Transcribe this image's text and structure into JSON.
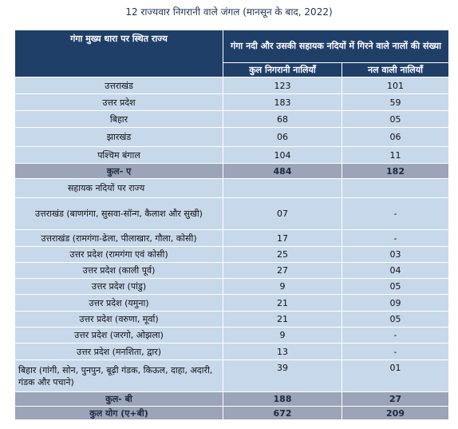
{
  "title": "12 राज्यवार निगरानी वाले जंगल (मानसून के बाद, 2022)",
  "table": {
    "header_state": "गंगा मुख्य धारा पर स्थित राज्य",
    "header_group": "गंगा नदी और उसकी सहायक नदियों में गिरने वाले नालों की संख्या",
    "header_col1": "कुल निगरानी नालियाँ",
    "header_col2": "नल वाली नालियाँ",
    "main_rows": [
      {
        "state": "उत्तराखंड",
        "total": "123",
        "tapped": "101"
      },
      {
        "state": "उत्तर प्रदेश",
        "total": "183",
        "tapped": "59"
      },
      {
        "state": "बिहार",
        "total": "68",
        "tapped": "05"
      },
      {
        "state": "झारखंड",
        "total": "06",
        "tapped": "06"
      },
      {
        "state": "पश्चिम बंगाल",
        "total": "104",
        "tapped": "11"
      }
    ],
    "total_a": {
      "label": "कुल- ए",
      "total": "484",
      "tapped": "182"
    },
    "tributary_heading": "सहायक नदियों पर राज्य",
    "trib_rows": [
      {
        "state": "उत्तराखंड (बाणगंगा, सुसवा-सॉन्ग, कैलाश और सुखी)",
        "total": "07",
        "tapped": "-"
      },
      {
        "state": "उत्तराखंड (रामगंगा-ढेला, पीलाखार, गौला, कोसी)",
        "total": "17",
        "tapped": "-"
      },
      {
        "state": "उत्तर प्रदेश (रामगंगा एवं कोसी)",
        "total": "25",
        "tapped": "03"
      },
      {
        "state": "उत्तर प्रदेश (काली पूर्व)",
        "total": "27",
        "tapped": "04"
      },
      {
        "state": "उत्तर प्रदेश (पांडु)",
        "total": "9",
        "tapped": "05"
      },
      {
        "state": "उत्तर प्रदेश (यमुना)",
        "total": "21",
        "tapped": "09"
      },
      {
        "state": "उत्तर प्रदेश (वरुणा, मूर्वा)",
        "total": "21",
        "tapped": "05"
      },
      {
        "state": "उत्तर प्रदेश (जरगो, ओझला)",
        "total": "9",
        "tapped": "-"
      },
      {
        "state": "उत्तर प्रदेश (मनशिता, द्वार)",
        "total": "13",
        "tapped": "-"
      },
      {
        "state": "बिहार (गांगी, सोन, पुनपुन, बूढ़ी गंडक, किऊल, दाहा, अदारी, गंडक और पचाने)",
        "total": "39",
        "tapped": "01"
      }
    ],
    "total_b": {
      "label": "कुल- बी",
      "total": "188",
      "tapped": "27"
    },
    "grand_total": {
      "label": "कुल योग (ए+बी)",
      "total": "672",
      "tapped": "209"
    }
  }
}
